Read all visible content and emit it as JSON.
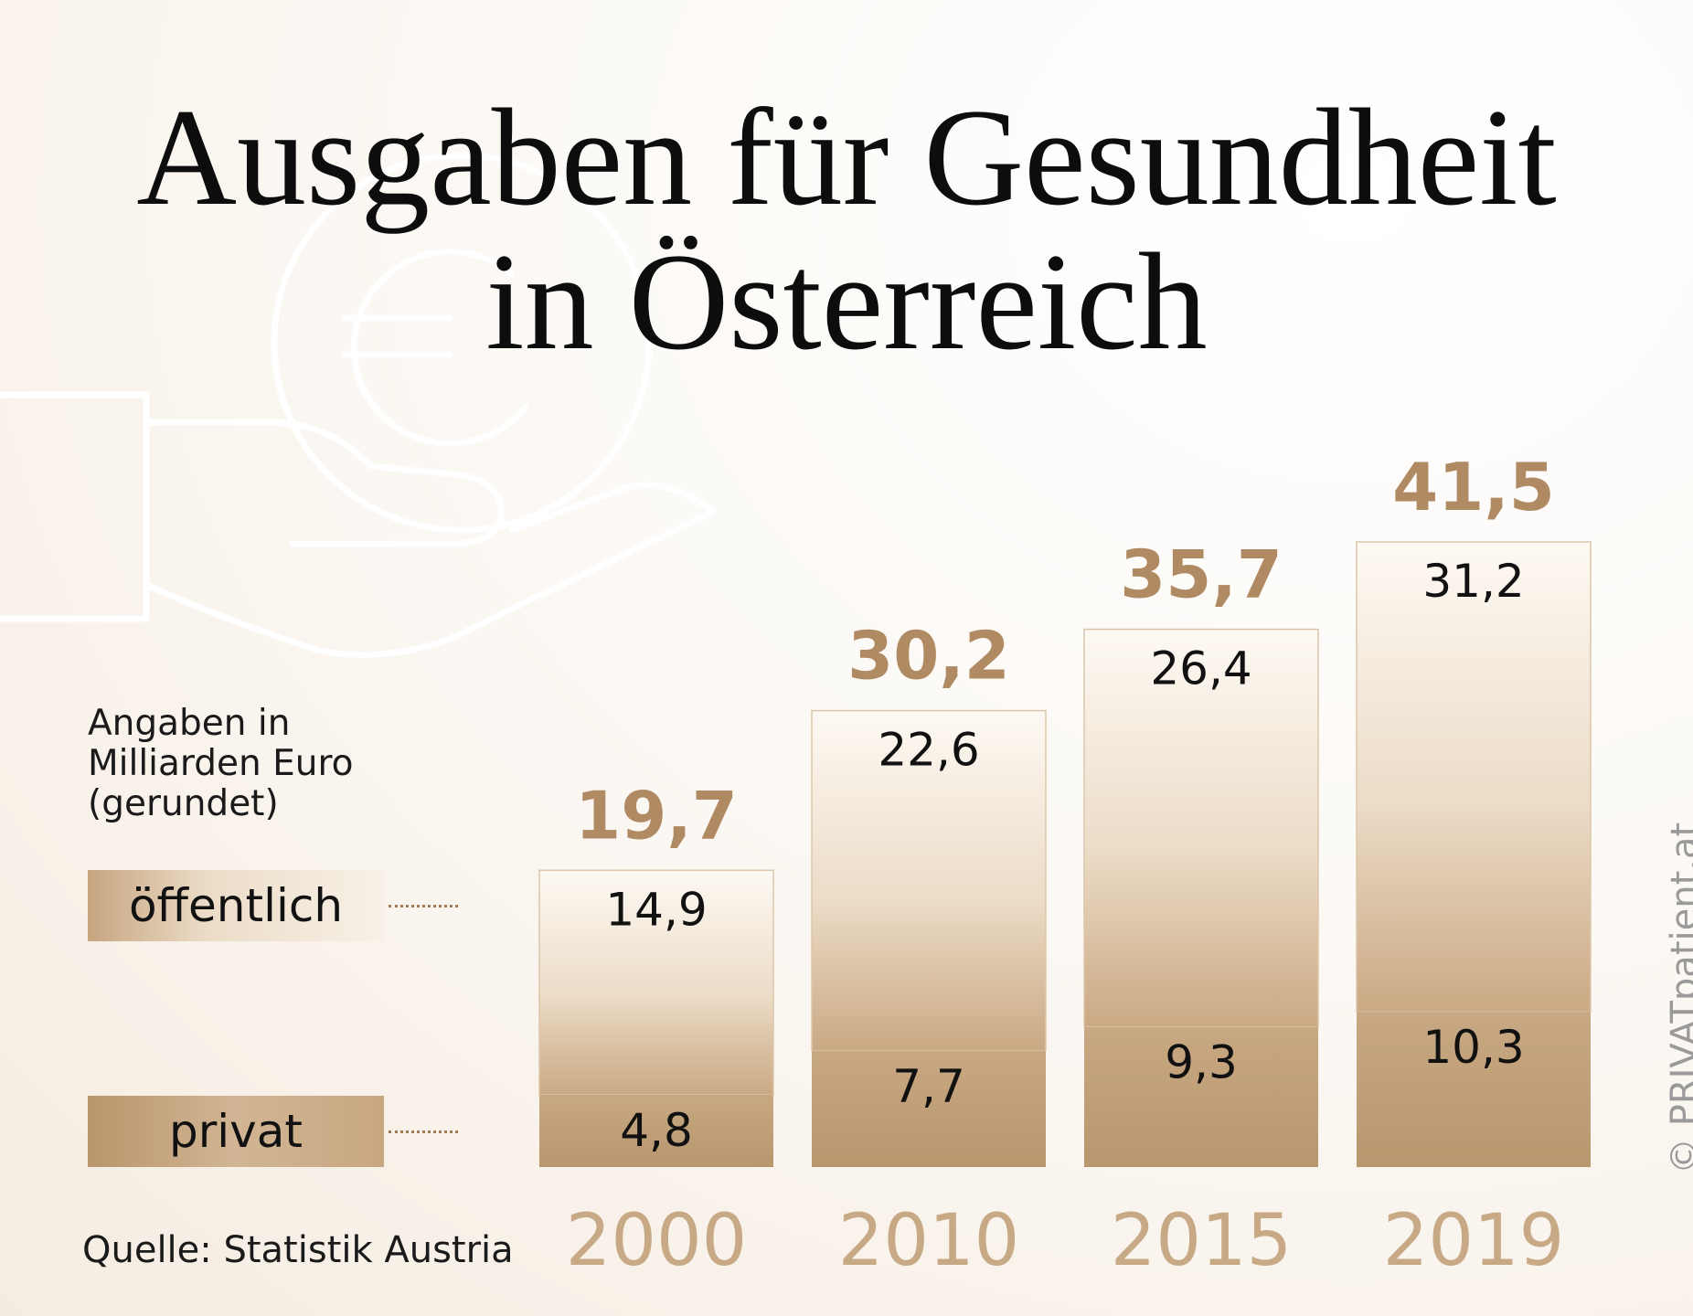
{
  "title_line1": "Ausgaben für Gesundheit",
  "title_line2": "in Österreich",
  "note_lines": [
    "Angaben in",
    "Milliarden Euro",
    "(gerundet)"
  ],
  "legend": {
    "public_label": "öffentlich",
    "private_label": "privat"
  },
  "source": "Quelle: Statistik Austria",
  "copyright": "© PRIVATpatient.at",
  "decoration_icon": "hand-holding-euro-coin-icon",
  "colors": {
    "total_label": "#b08a63",
    "year_label": "#c7a985",
    "private_segment": "#c3a27c",
    "public_segment_top": "#fdf9f3",
    "public_segment_bottom": "#caa983"
  },
  "chart_data": {
    "type": "bar",
    "stacked": true,
    "categories": [
      "2000",
      "2010",
      "2015",
      "2019"
    ],
    "series": [
      {
        "name": "privat",
        "values": [
          4.8,
          7.7,
          9.3,
          10.3
        ]
      },
      {
        "name": "öffentlich",
        "values": [
          14.9,
          22.6,
          26.4,
          31.2
        ]
      }
    ],
    "value_labels": {
      "privat": [
        "4,8",
        "7,7",
        "9,3",
        "10,3"
      ],
      "öffentlich": [
        "14,9",
        "22,6",
        "26,4",
        "31,2"
      ]
    },
    "totals": [
      19.7,
      30.2,
      35.7,
      41.5
    ],
    "total_labels": [
      "19,7",
      "30,2",
      "35,7",
      "41,5"
    ],
    "ylabel": "Angaben in Milliarden Euro (gerundet)",
    "ylim": [
      0,
      41.5
    ],
    "grid": false,
    "legend_position": "left"
  }
}
